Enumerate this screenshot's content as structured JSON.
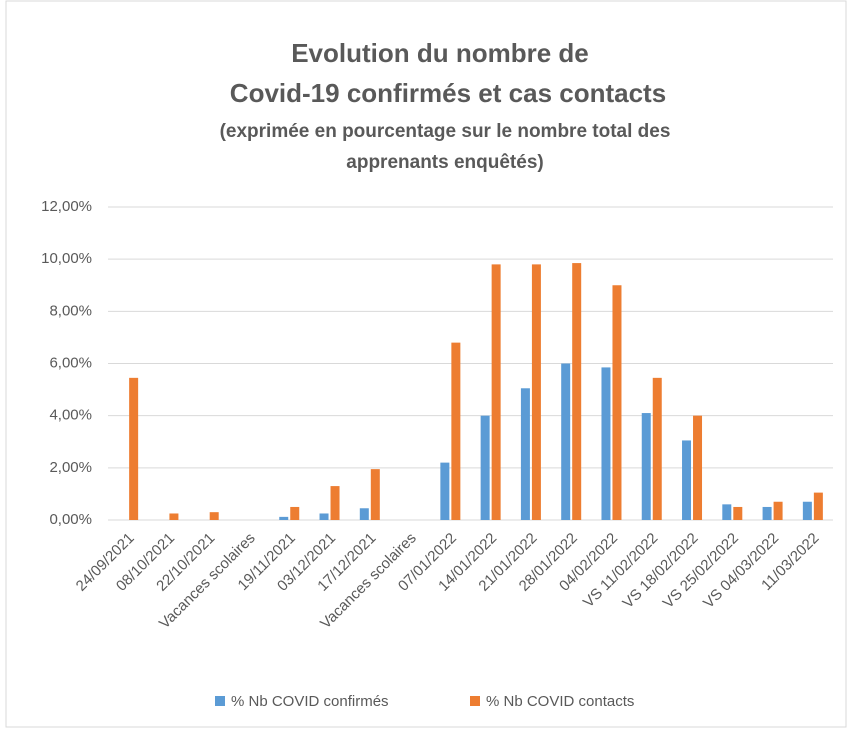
{
  "chart_data": {
    "type": "bar",
    "title": [
      "Evolution du nombre de",
      "Covid-19 confirmés et cas contacts"
    ],
    "subtitle": [
      "(exprimée en pourcentage sur le nombre total des",
      "apprenants enquêtés)"
    ],
    "categories": [
      "24/09/2021",
      "08/10/2021",
      "22/10/2021",
      "Vacances scolaires",
      "19/11/2021",
      "03/12/2021",
      "17/12/2021",
      "Vacances scolaires",
      "07/01/2022",
      "14/01/2022",
      "21/01/2022",
      "28/01/2022",
      "04/02/2022",
      "VS 11/02/2022",
      "VS 18/02/2022",
      "VS 25/02/2022",
      "VS 04/03/2022",
      "11/03/2022"
    ],
    "series": [
      {
        "name": "% Nb COVID confirmés",
        "color": "#5b9bd5",
        "values": [
          0,
          0,
          0,
          0,
          0.12,
          0.25,
          0.45,
          0,
          2.2,
          4.0,
          5.05,
          6.0,
          5.85,
          4.1,
          3.05,
          0.6,
          0.5,
          0.7
        ]
      },
      {
        "name": "% Nb COVID contacts",
        "color": "#ed7d31",
        "values": [
          5.45,
          0.25,
          0.3,
          0,
          0.5,
          1.3,
          1.95,
          0,
          6.8,
          9.8,
          9.8,
          9.85,
          9.0,
          5.45,
          4.0,
          0.5,
          0.7,
          1.05
        ]
      }
    ],
    "ylim": [
      0,
      12
    ],
    "yticks": [
      {
        "value": 0,
        "label": "0,00%"
      },
      {
        "value": 2,
        "label": "2,00%"
      },
      {
        "value": 4,
        "label": "4,00%"
      },
      {
        "value": 6,
        "label": "6,00%"
      },
      {
        "value": 8,
        "label": "8,00%"
      },
      {
        "value": 10,
        "label": "10,00%"
      },
      {
        "value": 12,
        "label": "12,00%"
      }
    ],
    "grid": true,
    "legend": "bottom"
  }
}
